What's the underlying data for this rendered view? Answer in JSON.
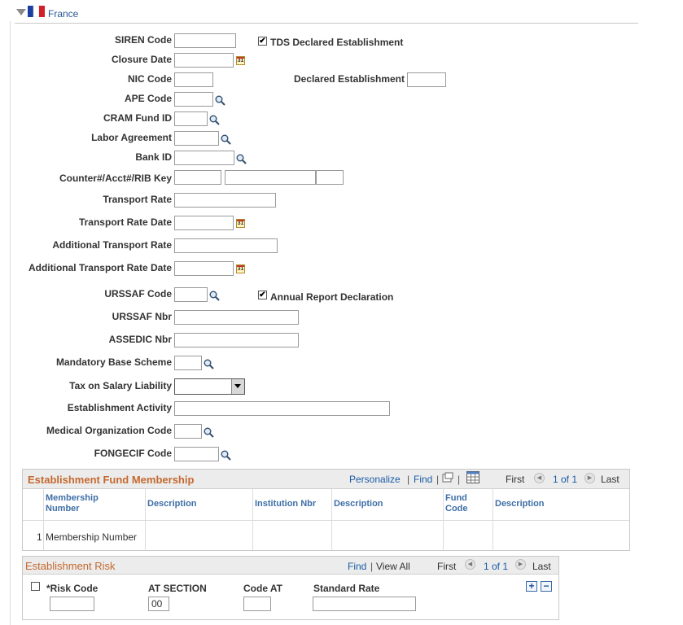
{
  "section": {
    "title": "France",
    "collapse_icon": "triangle-down-icon",
    "flag_colors": [
      "#1a3fa0",
      "#ffffff",
      "#d0202c"
    ]
  },
  "fields": {
    "siren_code": {
      "label": "SIREN Code",
      "value": ""
    },
    "tds_declared": {
      "label": "TDS Declared Establishment",
      "checked": true,
      "mark": "✔"
    },
    "closure_date": {
      "label": "Closure Date",
      "value": ""
    },
    "nic_code": {
      "label": "NIC Code",
      "value": ""
    },
    "declared_establishment": {
      "label": "Declared Establishment",
      "value": ""
    },
    "ape_code": {
      "label": "APE Code",
      "value": ""
    },
    "cram_fund_id": {
      "label": "CRAM Fund ID",
      "value": ""
    },
    "labor_agreement": {
      "label": "Labor Agreement",
      "value": ""
    },
    "bank_id": {
      "label": "Bank ID",
      "value": ""
    },
    "counter_acct_rib": {
      "label": "Counter#/Acct#/RIB Key",
      "counter": "",
      "acct": "",
      "rib": ""
    },
    "transport_rate": {
      "label": "Transport Rate",
      "value": ""
    },
    "transport_rate_date": {
      "label": "Transport Rate Date",
      "value": ""
    },
    "additional_transport_rate": {
      "label": "Additional Transport Rate",
      "value": ""
    },
    "additional_transport_rate_date": {
      "label": "Additional Transport Rate Date",
      "value": ""
    },
    "urssaf_code": {
      "label": "URSSAF Code",
      "value": ""
    },
    "annual_report": {
      "label": "Annual Report Declaration",
      "checked": true,
      "mark": "✔"
    },
    "urssaf_nbr": {
      "label": "URSSAF Nbr",
      "value": ""
    },
    "assedic_nbr": {
      "label": "ASSEDIC Nbr",
      "value": ""
    },
    "mandatory_base_scheme": {
      "label": "Mandatory Base Scheme",
      "value": ""
    },
    "tax_on_salary": {
      "label": "Tax on Salary Liability",
      "value": ""
    },
    "establishment_activity": {
      "label": "Establishment Activity",
      "value": ""
    },
    "medical_org_code": {
      "label": "Medical Organization Code",
      "value": ""
    },
    "fongecif_code": {
      "label": "FONGECIF Code",
      "value": ""
    },
    "calendar_glyph": "31"
  },
  "fund_grid": {
    "title": "Establishment Fund Membership",
    "personalize": "Personalize",
    "find": "Find",
    "pipe": "|",
    "nav": {
      "first": "First",
      "range": "1 of 1",
      "last": "Last"
    },
    "columns": {
      "membership_number": "Membership Number",
      "description1": "Description",
      "institution_nbr": "Institution Nbr",
      "description2": "Description",
      "fund_code": "Fund Code",
      "description3": "Description"
    },
    "rows": [
      {
        "num": "1",
        "membership_number": "Membership Number"
      }
    ]
  },
  "risk_grid": {
    "title": "Establishment Risk",
    "find": "Find",
    "pipe": "|",
    "view_all": "View All",
    "nav": {
      "first": "First",
      "range": "1 of 1",
      "last": "Last"
    },
    "columns": {
      "risk_code": "*Risk Code",
      "at_section": "AT SECTION",
      "code_at": "Code AT",
      "standard_rate": "Standard Rate"
    },
    "row": {
      "risk_code": "",
      "at_section": "00",
      "code_at": "",
      "standard_rate": ""
    },
    "add_glyph": "+",
    "remove_glyph": "−"
  }
}
